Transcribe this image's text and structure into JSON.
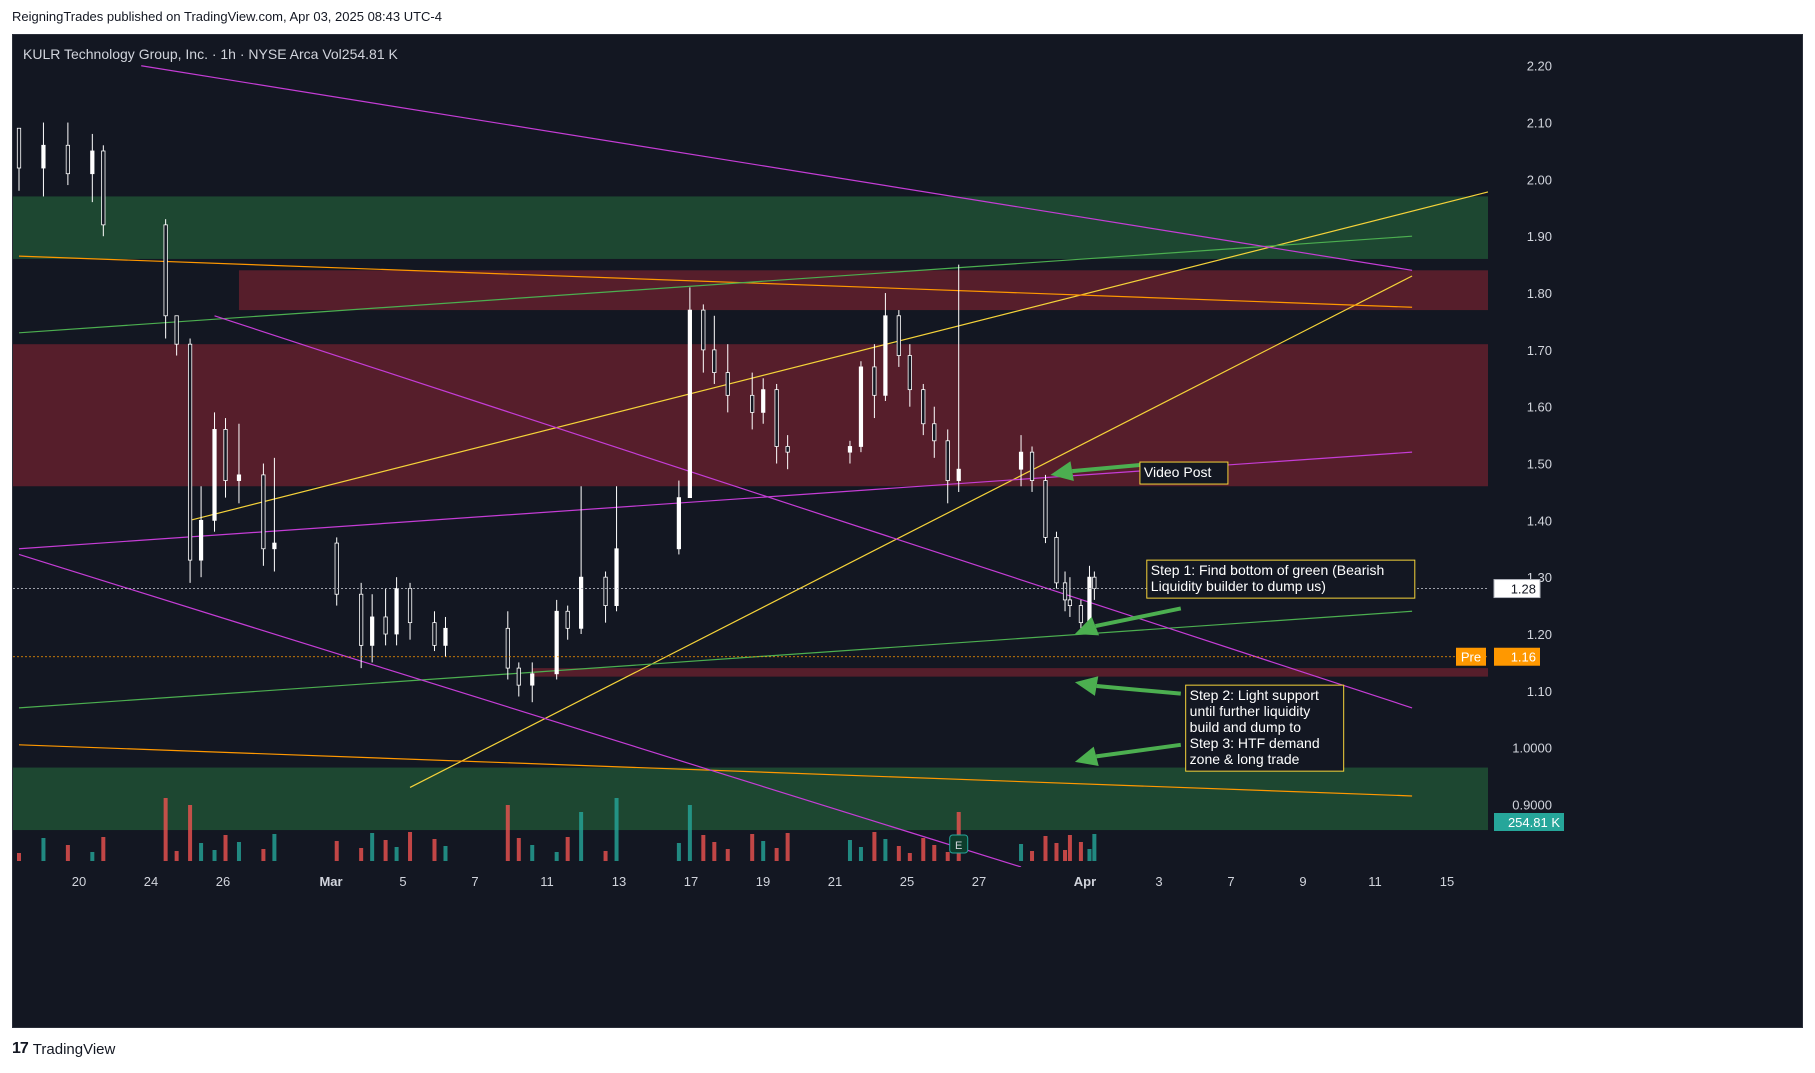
{
  "header": {
    "publisher_line": "ReigningTrades published on TradingView.com, Apr 03, 2025 08:43 UTC-4",
    "symbol_line": "KULR Technology Group, Inc. · 1h · NYSE Arca  Vol254.81 K"
  },
  "footer": {
    "logo_mark": "17",
    "logo_text": "TradingView"
  },
  "colors": {
    "background": "#131722",
    "candle_up": "#ffffff",
    "candle_down": "#ffffff",
    "volume_up": "#26a69a",
    "volume_down": "#ef5350",
    "supply_zone": "#5a1f2c",
    "demand_zone": "#1e4a33",
    "trendline_yellow": "#f5d33a",
    "trendline_orange": "#ff9800",
    "trendline_green": "#4caf50",
    "trendline_magenta": "#c53dd6",
    "arrow_green": "#4caf50",
    "callout_border": "#f5d33a",
    "price_label_bg": "#ffffff",
    "pre_label_bg": "#ff9800",
    "volume_label_bg": "#26a69a"
  },
  "chart_data": {
    "type": "candlestick",
    "symbol": "KULR Technology Group, Inc.",
    "interval": "1h",
    "exchange": "NYSE Arca",
    "y_axis": {
      "ticks": [
        "2.20",
        "2.10",
        "2.00",
        "1.90",
        "1.80",
        "1.70",
        "1.60",
        "1.50",
        "1.40",
        "1.30",
        "1.20",
        "1.10",
        "1.0000",
        "0.9000"
      ],
      "tick_values": [
        2.2,
        2.1,
        2.0,
        1.9,
        1.8,
        1.7,
        1.6,
        1.5,
        1.4,
        1.3,
        1.2,
        1.1,
        1.0,
        0.9
      ],
      "ylim": [
        0.79,
        2.24
      ]
    },
    "x_axis": {
      "labels": [
        "20",
        "24",
        "26",
        "Mar",
        "5",
        "7",
        "11",
        "13",
        "17",
        "19",
        "21",
        "25",
        "27",
        "Apr",
        "3",
        "7",
        "9",
        "11",
        "15"
      ]
    },
    "last_price": {
      "label": "1.28",
      "value": 1.28
    },
    "premarket_price": {
      "tag": "Pre",
      "label": "1.16",
      "value": 1.16
    },
    "volume_label": "254.81 K",
    "earnings_marker": "E",
    "zones": [
      {
        "kind": "demand",
        "from": 1.86,
        "to": 1.97,
        "end": "right"
      },
      {
        "kind": "supply",
        "from": 1.77,
        "to": 1.84,
        "start_day": "Feb 27",
        "end": "right"
      },
      {
        "kind": "supply",
        "from": 1.46,
        "to": 1.71,
        "end": "right"
      },
      {
        "kind": "supply",
        "from": 1.125,
        "to": 1.14,
        "start_day": "Mar 11",
        "end": "right"
      },
      {
        "kind": "demand",
        "from": 0.855,
        "to": 0.965,
        "end": "right"
      }
    ],
    "trendlines": [
      {
        "color": "yellow",
        "from": {
          "day": "Feb 25",
          "price": 1.4
        },
        "to": {
          "day": "Mar 31",
          "price": 1.77
        },
        "end": "right",
        "note": "rising line continues off the top"
      },
      {
        "color": "yellow",
        "from": {
          "day": "Mar 6",
          "price": 0.93
        },
        "to": {
          "day": "Apr 16",
          "price": 1.83
        }
      },
      {
        "color": "orange",
        "from": {
          "day": "Feb 18",
          "price": 1.865
        },
        "to": {
          "day": "Apr 16",
          "price": 1.775
        }
      },
      {
        "color": "orange",
        "from": {
          "day": "Feb 18",
          "price": 1.005
        },
        "to": {
          "day": "Apr 16",
          "price": 0.915
        }
      },
      {
        "color": "green",
        "from": {
          "day": "Feb 18",
          "price": 1.73
        },
        "to": {
          "day": "Apr 16",
          "price": 1.9
        }
      },
      {
        "color": "green",
        "from": {
          "day": "Feb 18",
          "price": 1.07
        },
        "to": {
          "day": "Apr 16",
          "price": 1.24
        }
      },
      {
        "color": "magenta",
        "from": {
          "day": "Feb 23",
          "price": 2.2
        },
        "to": {
          "day": "Apr 16",
          "price": 1.84
        }
      },
      {
        "color": "magenta",
        "from": {
          "day": "Feb 26",
          "price": 1.76
        },
        "to": {
          "day": "Apr 16",
          "price": 1.07
        }
      },
      {
        "color": "magenta",
        "from": {
          "day": "Feb 18",
          "price": 1.35
        },
        "to": {
          "day": "Apr 16",
          "price": 1.52
        },
        "note": "upper channel line"
      },
      {
        "color": "magenta",
        "from": {
          "day": "Feb 18",
          "price": 1.34
        },
        "to": {
          "day": "Mar 31",
          "price": 0.79
        },
        "note": "lower channel line"
      }
    ],
    "annotations": [
      {
        "text": "Video Post",
        "price": 1.485,
        "day": "Apr 2"
      },
      {
        "text": "Step 1: Find bottom of green (Bearish Liquidity builder to dump us)",
        "price": 1.3,
        "day": "Apr 4"
      },
      {
        "text": "Step 2: Light support until further liquidity build and dump to Step 3: HTF demand zone & long trade",
        "price": 1.04,
        "day": "Apr 6"
      }
    ],
    "arrows": [
      {
        "from": {
          "day": "Apr 3",
          "price": 1.5
        },
        "to": {
          "day": "Apr 1",
          "price": 1.48
        }
      },
      {
        "from": {
          "day": "Apr 4",
          "price": 1.245
        },
        "to": {
          "day": "Apr 2",
          "price": 1.2
        }
      },
      {
        "from": {
          "day": "Apr 4",
          "price": 1.095
        },
        "to": {
          "day": "Apr 2",
          "price": 1.115
        }
      },
      {
        "from": {
          "day": "Apr 4",
          "price": 1.005
        },
        "to": {
          "day": "Apr 2",
          "price": 0.975
        }
      }
    ],
    "candles": [
      {
        "day": "Feb 18",
        "ohlc": [
          2.09,
          2.09,
          1.98,
          2.02
        ],
        "vol": "down"
      },
      {
        "day": "Feb 19",
        "ohlc": [
          2.02,
          2.1,
          1.97,
          2.06
        ],
        "vol": "up"
      },
      {
        "day": "Feb 20",
        "ohlc": [
          2.06,
          2.1,
          1.99,
          2.01
        ],
        "vol": "down"
      },
      {
        "day": "Feb 21",
        "ohlc": [
          2.01,
          2.08,
          1.96,
          2.05
        ],
        "vol": "up"
      },
      {
        "day": "Feb 21b",
        "ohlc": [
          2.05,
          2.06,
          1.9,
          1.92
        ],
        "vol": "down"
      },
      {
        "day": "Feb 24",
        "ohlc": [
          1.92,
          1.93,
          1.72,
          1.76
        ],
        "vol": "down",
        "big_vol": true
      },
      {
        "day": "Feb 24b",
        "ohlc": [
          1.76,
          1.76,
          1.69,
          1.71
        ],
        "vol": "down"
      },
      {
        "day": "Feb 25",
        "ohlc": [
          1.71,
          1.72,
          1.29,
          1.33
        ],
        "vol": "down",
        "big_vol": true
      },
      {
        "day": "Feb 25b",
        "ohlc": [
          1.33,
          1.46,
          1.3,
          1.4
        ],
        "vol": "up"
      },
      {
        "day": "Feb 26",
        "ohlc": [
          1.4,
          1.59,
          1.38,
          1.56
        ],
        "vol": "up"
      },
      {
        "day": "Feb 26b",
        "ohlc": [
          1.56,
          1.58,
          1.44,
          1.47
        ],
        "vol": "down"
      },
      {
        "day": "Feb 27",
        "ohlc": [
          1.47,
          1.57,
          1.43,
          1.48
        ],
        "vol": "up"
      },
      {
        "day": "Feb 28",
        "ohlc": [
          1.48,
          1.5,
          1.32,
          1.35
        ],
        "vol": "down"
      },
      {
        "day": "Feb 28b",
        "ohlc": [
          1.35,
          1.51,
          1.31,
          1.36
        ],
        "vol": "up"
      },
      {
        "day": "Mar 3",
        "ohlc": [
          1.36,
          1.37,
          1.25,
          1.27
        ],
        "vol": "down"
      },
      {
        "day": "Mar 4",
        "ohlc": [
          1.27,
          1.29,
          1.14,
          1.18
        ],
        "vol": "down"
      },
      {
        "day": "Mar 4b",
        "ohlc": [
          1.18,
          1.27,
          1.15,
          1.23
        ],
        "vol": "up"
      },
      {
        "day": "Mar 5",
        "ohlc": [
          1.23,
          1.28,
          1.18,
          1.2
        ],
        "vol": "down"
      },
      {
        "day": "Mar 5b",
        "ohlc": [
          1.2,
          1.3,
          1.18,
          1.28
        ],
        "vol": "up"
      },
      {
        "day": "Mar 6",
        "ohlc": [
          1.28,
          1.29,
          1.19,
          1.22
        ],
        "vol": "down"
      },
      {
        "day": "Mar 7",
        "ohlc": [
          1.22,
          1.24,
          1.17,
          1.18
        ],
        "vol": "down"
      },
      {
        "day": "Mar 7b",
        "ohlc": [
          1.18,
          1.23,
          1.16,
          1.21
        ],
        "vol": "up"
      },
      {
        "day": "Mar 10",
        "ohlc": [
          1.21,
          1.24,
          1.12,
          1.14
        ],
        "vol": "down",
        "big_vol": true
      },
      {
        "day": "Mar 10b",
        "ohlc": [
          1.14,
          1.15,
          1.09,
          1.11
        ],
        "vol": "down"
      },
      {
        "day": "Mar 11",
        "ohlc": [
          1.11,
          1.15,
          1.08,
          1.13
        ],
        "vol": "up"
      },
      {
        "day": "Mar 12",
        "ohlc": [
          1.13,
          1.26,
          1.12,
          1.24
        ],
        "vol": "up"
      },
      {
        "day": "Mar 12b",
        "ohlc": [
          1.24,
          1.25,
          1.19,
          1.21
        ],
        "vol": "down"
      },
      {
        "day": "Mar 13",
        "ohlc": [
          1.21,
          1.46,
          1.2,
          1.3
        ],
        "vol": "up",
        "big_vol": true
      },
      {
        "day": "Mar 14",
        "ohlc": [
          1.3,
          1.31,
          1.22,
          1.25
        ],
        "vol": "down"
      },
      {
        "day": "Mar 14b",
        "ohlc": [
          1.25,
          1.46,
          1.24,
          1.35
        ],
        "vol": "up",
        "big_vol": true
      },
      {
        "day": "Mar 17",
        "ohlc": [
          1.35,
          1.47,
          1.34,
          1.44
        ],
        "vol": "up"
      },
      {
        "day": "Mar 17b",
        "ohlc": [
          1.44,
          1.81,
          1.52,
          1.77
        ],
        "vol": "up",
        "big_vol": true
      },
      {
        "day": "Mar 18",
        "ohlc": [
          1.77,
          1.78,
          1.66,
          1.7
        ],
        "vol": "down"
      },
      {
        "day": "Mar 18b",
        "ohlc": [
          1.7,
          1.76,
          1.64,
          1.66
        ],
        "vol": "down"
      },
      {
        "day": "Mar 19",
        "ohlc": [
          1.66,
          1.71,
          1.59,
          1.62
        ],
        "vol": "down"
      },
      {
        "day": "Mar 20",
        "ohlc": [
          1.62,
          1.66,
          1.56,
          1.59
        ],
        "vol": "down"
      },
      {
        "day": "Mar 20b",
        "ohlc": [
          1.59,
          1.65,
          1.57,
          1.63
        ],
        "vol": "up"
      },
      {
        "day": "Mar 21",
        "ohlc": [
          1.63,
          1.64,
          1.5,
          1.53
        ],
        "vol": "down"
      },
      {
        "day": "Mar 21b",
        "ohlc": [
          1.53,
          1.55,
          1.49,
          1.52
        ],
        "vol": "down"
      },
      {
        "day": "Mar 24",
        "ohlc": [
          1.52,
          1.54,
          1.5,
          1.53
        ],
        "vol": "up"
      },
      {
        "day": "Mar 24b",
        "ohlc": [
          1.53,
          1.68,
          1.52,
          1.67
        ],
        "vol": "up"
      },
      {
        "day": "Mar 25",
        "ohlc": [
          1.67,
          1.71,
          1.58,
          1.62
        ],
        "vol": "down"
      },
      {
        "day": "Mar 25b",
        "ohlc": [
          1.62,
          1.8,
          1.61,
          1.76
        ],
        "vol": "up"
      },
      {
        "day": "Mar 26",
        "ohlc": [
          1.76,
          1.77,
          1.67,
          1.69
        ],
        "vol": "down"
      },
      {
        "day": "Mar 26b",
        "ohlc": [
          1.69,
          1.71,
          1.6,
          1.63
        ],
        "vol": "down"
      },
      {
        "day": "Mar 27",
        "ohlc": [
          1.63,
          1.64,
          1.55,
          1.57
        ],
        "vol": "down"
      },
      {
        "day": "Mar 27b",
        "ohlc": [
          1.57,
          1.6,
          1.51,
          1.54
        ],
        "vol": "down"
      },
      {
        "day": "Mar 28",
        "ohlc": [
          1.54,
          1.56,
          1.43,
          1.47
        ],
        "vol": "down"
      },
      {
        "day": "Mar 28b",
        "ohlc": [
          1.47,
          1.85,
          1.45,
          1.49
        ],
        "vol": "down",
        "big_vol": true
      },
      {
        "day": "Mar 31",
        "ohlc": [
          1.49,
          1.55,
          1.46,
          1.52
        ],
        "vol": "up"
      },
      {
        "day": "Mar 31b",
        "ohlc": [
          1.52,
          1.53,
          1.45,
          1.47
        ],
        "vol": "down"
      },
      {
        "day": "Apr 1",
        "ohlc": [
          1.47,
          1.48,
          1.36,
          1.37
        ],
        "vol": "down"
      },
      {
        "day": "Apr 1b",
        "ohlc": [
          1.37,
          1.38,
          1.28,
          1.29
        ],
        "vol": "down"
      },
      {
        "day": "Apr 1c",
        "ohlc": [
          1.29,
          1.31,
          1.24,
          1.26
        ],
        "vol": "down"
      },
      {
        "day": "Apr 2",
        "ohlc": [
          1.26,
          1.3,
          1.23,
          1.25
        ],
        "vol": "down"
      },
      {
        "day": "Apr 2b",
        "ohlc": [
          1.25,
          1.26,
          1.2,
          1.22
        ],
        "vol": "down"
      },
      {
        "day": "Apr 2c",
        "ohlc": [
          1.22,
          1.32,
          1.21,
          1.3
        ],
        "vol": "up"
      },
      {
        "day": "Apr 3",
        "ohlc": [
          1.3,
          1.31,
          1.26,
          1.28
        ],
        "vol": "up"
      }
    ]
  }
}
